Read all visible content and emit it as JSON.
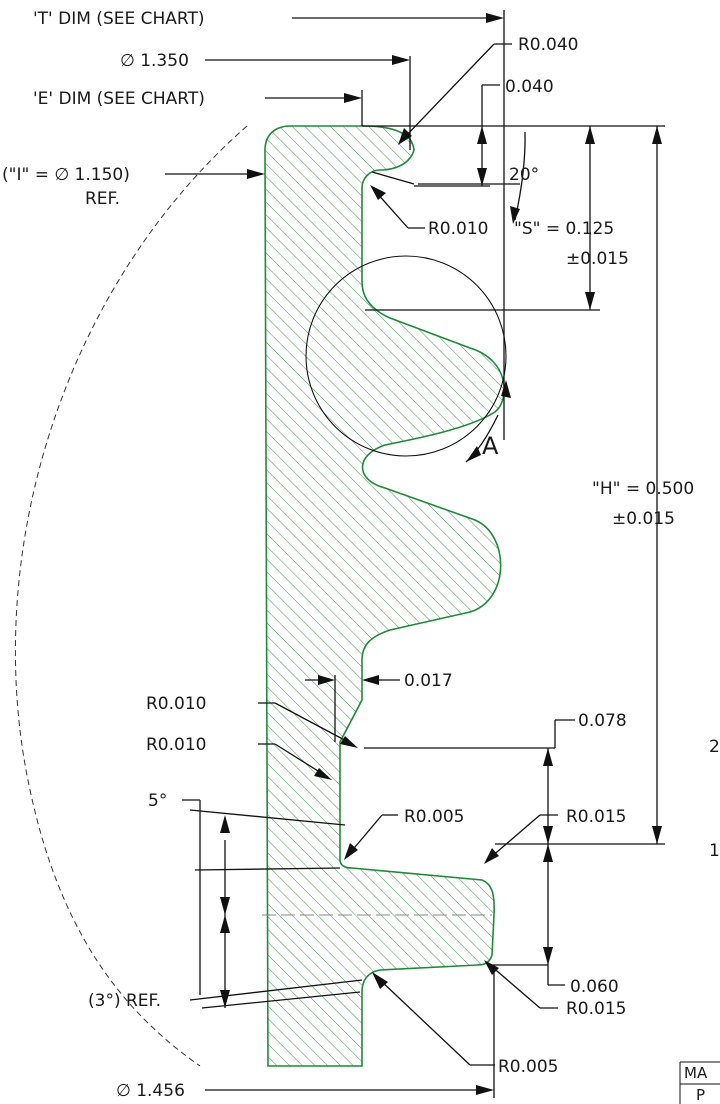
{
  "drawing": {
    "labels": {
      "t_dim": "'T' DIM (SEE CHART)",
      "dia_1350": "∅ 1.350",
      "e_dim": "'E' DIM (SEE CHART)",
      "i_dim": "(\"I\" = ∅ 1.150)",
      "ref1": "REF.",
      "r0040": "R0.040",
      "d0040": "0.040",
      "ang20": "20°",
      "r0010_top": "R0.010",
      "s_dim": "\"S\" = 0.125",
      "s_tol": "±0.015",
      "detail_a": "A",
      "h_dim": "\"H\" = 0.500",
      "h_tol": "±0.015",
      "d0017": "0.017",
      "r0010_a": "R0.010",
      "r0010_b": "R0.010",
      "d0078": "0.078",
      "ang5": "5°",
      "r0005_top": "R0.005",
      "r0015_top": "R0.015",
      "d0060": "0.060",
      "r0015_bot": "R0.015",
      "ref3": "(3°) REF.",
      "r0005_bot": "R0.005",
      "dia_1456": "∅ 1.456",
      "edge_2": "2",
      "edge_1": "1",
      "edge_ma": "MA",
      "edge_p": "P"
    },
    "colors": {
      "profile": "#1f8a3a",
      "hatch": "#2e8b3e",
      "line": "#111111"
    }
  }
}
